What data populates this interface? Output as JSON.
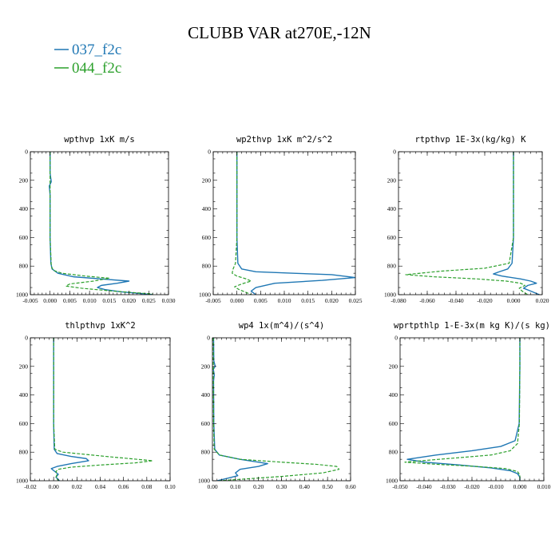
{
  "figure": {
    "title": "CLUBB VAR at270E,-12N"
  },
  "legend": [
    {
      "name": "037_f2c",
      "color": "#1f77b4",
      "dash": "solid"
    },
    {
      "name": "044_f2c",
      "color": "#2ca02c",
      "dash": "dashed"
    }
  ],
  "chart_data": [
    {
      "type": "line",
      "title": "wpthvp  1xK m/s",
      "xlim": [
        -0.005,
        0.03
      ],
      "xticks": [
        "-0.005",
        "0.000",
        "0.005",
        "0.010",
        "0.015",
        "0.020",
        "0.025",
        "0.030"
      ],
      "ylim": [
        1000,
        0
      ],
      "yticks": [
        "0",
        "200",
        "400",
        "600",
        "800",
        "1000"
      ],
      "series": [
        {
          "name": "037_f2c",
          "x": [
            0.0,
            0.0,
            0.0003,
            -0.0002,
            0.0,
            0.0,
            0.0002,
            0.0005,
            0.002,
            0.006,
            0.013,
            0.02,
            0.017,
            0.013,
            0.012,
            0.014,
            0.018,
            0.022,
            0.026
          ],
          "y": [
            0,
            150,
            210,
            240,
            300,
            600,
            780,
            820,
            850,
            875,
            890,
            905,
            920,
            935,
            950,
            965,
            980,
            990,
            1000
          ]
        },
        {
          "name": "044_f2c",
          "x": [
            0.0,
            0.0,
            0.0,
            0.0,
            0.0003,
            0.0008,
            0.003,
            0.009,
            0.015,
            0.011,
            0.005,
            0.004,
            0.008,
            0.012,
            0.016,
            0.021,
            0.026
          ],
          "y": [
            0,
            150,
            240,
            600,
            800,
            830,
            850,
            870,
            885,
            905,
            925,
            940,
            955,
            965,
            975,
            985,
            995
          ]
        }
      ]
    },
    {
      "type": "line",
      "title": "wp2thvp  1xK m^2/s^2",
      "xlim": [
        -0.005,
        0.025
      ],
      "xticks": [
        "-0.005",
        "0.000",
        "0.005",
        "0.010",
        "0.015",
        "0.020",
        "0.025"
      ],
      "ylim": [
        1000,
        0
      ],
      "yticks": [
        "0",
        "200",
        "400",
        "600",
        "800",
        "1000"
      ],
      "series": [
        {
          "name": "037_f2c",
          "x": [
            0.0,
            0.0,
            0.0,
            0.0002,
            0.001,
            0.004,
            0.012,
            0.02,
            0.025,
            0.018,
            0.008,
            0.004,
            0.003,
            0.004
          ],
          "y": [
            0,
            200,
            600,
            780,
            820,
            840,
            850,
            860,
            880,
            900,
            920,
            950,
            975,
            1000
          ]
        },
        {
          "name": "044_f2c",
          "x": [
            0.0,
            0.0,
            0.0,
            -0.0003,
            -0.0008,
            -0.001,
            0.0,
            0.002,
            0.003,
            0.001,
            -0.0005,
            0.0005,
            0.002,
            0.003
          ],
          "y": [
            0,
            200,
            600,
            780,
            820,
            850,
            870,
            890,
            905,
            925,
            945,
            965,
            985,
            1000
          ]
        }
      ]
    },
    {
      "type": "line",
      "title": "rtpthvp  1E-3x(kg/kg) K",
      "xlim": [
        -0.08,
        0.02
      ],
      "xticks": [
        "-0.080",
        "-0.060",
        "-0.040",
        "-0.020",
        "0.000",
        "0.020"
      ],
      "ylim": [
        1000,
        0
      ],
      "yticks": [
        "0",
        "200",
        "400",
        "600",
        "800",
        "1000"
      ],
      "series": [
        {
          "name": "037_f2c",
          "x": [
            0.0,
            0.0,
            0.0,
            -0.001,
            -0.004,
            -0.01,
            -0.014,
            -0.008,
            0.005,
            0.012,
            0.016,
            0.01,
            0.007,
            0.012,
            0.018
          ],
          "y": [
            0,
            200,
            600,
            780,
            820,
            840,
            855,
            870,
            890,
            905,
            920,
            935,
            955,
            975,
            1000
          ]
        },
        {
          "name": "044_f2c",
          "x": [
            0.0,
            0.0,
            0.0,
            -0.003,
            -0.02,
            -0.05,
            -0.075,
            -0.055,
            -0.025,
            -0.005,
            0.005,
            0.008,
            0.004,
            0.006,
            0.01
          ],
          "y": [
            0,
            200,
            600,
            780,
            815,
            835,
            860,
            875,
            890,
            905,
            920,
            935,
            955,
            975,
            1000
          ]
        }
      ]
    },
    {
      "type": "line",
      "title": "thlpthvp  1xK^2",
      "xlim": [
        -0.02,
        0.1
      ],
      "xticks": [
        "-0.02",
        "0.00",
        "0.02",
        "0.04",
        "0.06",
        "0.08",
        "0.10"
      ],
      "ylim": [
        1000,
        0
      ],
      "yticks": [
        "0",
        "200",
        "400",
        "600",
        "800",
        "1000"
      ],
      "series": [
        {
          "name": "037_f2c",
          "x": [
            0.0,
            0.0,
            0.0,
            0.0005,
            0.003,
            0.015,
            0.028,
            0.03,
            0.015,
            0.003,
            -0.002,
            0.001,
            0.004,
            0.002,
            0.005
          ],
          "y": [
            0,
            200,
            600,
            780,
            810,
            830,
            845,
            860,
            880,
            900,
            915,
            935,
            955,
            975,
            1000
          ]
        },
        {
          "name": "044_f2c",
          "x": [
            0.0,
            0.0,
            0.0,
            0.001,
            0.008,
            0.045,
            0.085,
            0.07,
            0.04,
            0.015,
            0.004,
            0.002,
            0.003,
            0.002,
            0.004
          ],
          "y": [
            0,
            200,
            600,
            780,
            800,
            830,
            860,
            875,
            890,
            905,
            920,
            935,
            955,
            975,
            1000
          ]
        }
      ]
    },
    {
      "type": "line",
      "title": "wp4  1x(m^4)/(s^4)",
      "xlim": [
        0.0,
        0.6
      ],
      "xticks": [
        "0.00",
        "0.10",
        "0.20",
        "0.30",
        "0.40",
        "0.50",
        "0.60"
      ],
      "ylim": [
        1000,
        0
      ],
      "yticks": [
        "0",
        "200",
        "400",
        "600",
        "800",
        "1000"
      ],
      "series": [
        {
          "name": "037_f2c",
          "x": [
            0.005,
            0.006,
            0.012,
            0.004,
            0.008,
            0.005,
            0.006,
            0.01,
            0.03,
            0.12,
            0.24,
            0.2,
            0.12,
            0.1,
            0.11,
            0.06,
            0.02
          ],
          "y": [
            0,
            160,
            200,
            220,
            260,
            300,
            600,
            780,
            820,
            850,
            880,
            900,
            920,
            945,
            965,
            985,
            1000
          ]
        },
        {
          "name": "044_f2c",
          "x": [
            0.004,
            0.004,
            0.005,
            0.008,
            0.03,
            0.12,
            0.3,
            0.45,
            0.54,
            0.55,
            0.48,
            0.3,
            0.12,
            0.03
          ],
          "y": [
            0,
            200,
            600,
            780,
            820,
            850,
            870,
            885,
            900,
            920,
            945,
            970,
            990,
            1000
          ]
        }
      ]
    },
    {
      "type": "line",
      "title": "wprtpthlp  1-E-3x(m kg K)/(s kg)",
      "xlim": [
        -0.05,
        0.01
      ],
      "xticks": [
        "-0.050",
        "-0.040",
        "-0.030",
        "-0.020",
        "-0.010",
        "0.000",
        "0.010"
      ],
      "ylim": [
        1000,
        0
      ],
      "yticks": [
        "0",
        "200",
        "400",
        "600",
        "800",
        "1000"
      ],
      "series": [
        {
          "name": "037_f2c",
          "x": [
            0.0,
            0.0,
            -0.0003,
            -0.002,
            -0.008,
            -0.02,
            -0.035,
            -0.047,
            -0.04,
            -0.025,
            -0.012,
            -0.004,
            -0.001,
            0.0,
            0.0
          ],
          "y": [
            0,
            200,
            600,
            720,
            760,
            790,
            820,
            850,
            870,
            890,
            910,
            930,
            950,
            975,
            1000
          ]
        },
        {
          "name": "044_f2c",
          "x": [
            0.0,
            0.0,
            -0.0002,
            -0.001,
            -0.004,
            -0.012,
            -0.03,
            -0.048,
            -0.035,
            -0.018,
            -0.006,
            -0.001,
            0.0,
            0.0
          ],
          "y": [
            0,
            200,
            600,
            740,
            790,
            820,
            845,
            870,
            885,
            900,
            915,
            935,
            960,
            1000
          ]
        }
      ]
    }
  ]
}
